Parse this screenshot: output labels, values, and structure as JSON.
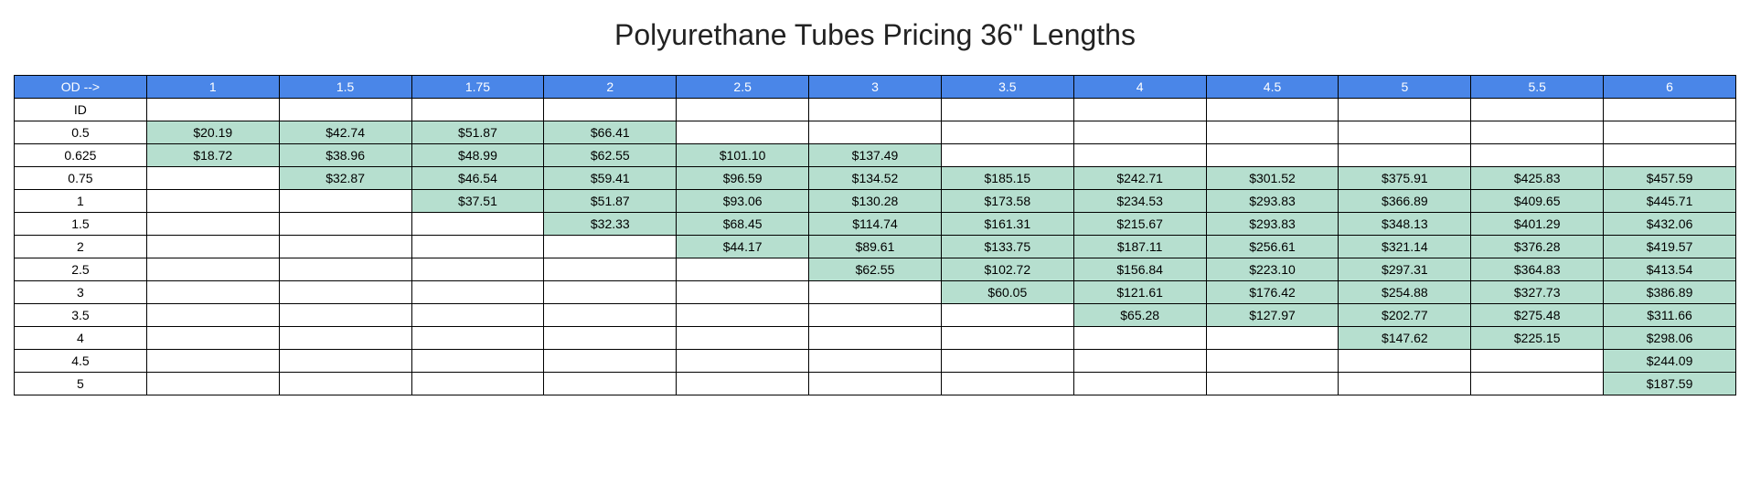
{
  "title": "Polyurethane Tubes Pricing 36\" Lengths",
  "header_bg": "#4a86e8",
  "header_fg": "#ffffff",
  "cell_fill_bg": "#b6dfcf",
  "border_color": "#000000",
  "corner_label": "OD -->",
  "id_label": "ID",
  "od_values": [
    "1",
    "1.5",
    "1.75",
    "2",
    "2.5",
    "3",
    "3.5",
    "4",
    "4.5",
    "5",
    "5.5",
    "6"
  ],
  "id_values": [
    "0.5",
    "0.625",
    "0.75",
    "1",
    "1.5",
    "2",
    "2.5",
    "3",
    "3.5",
    "4",
    "4.5",
    "5"
  ],
  "prices": [
    [
      "$20.19",
      "$42.74",
      "$51.87",
      "$66.41",
      "",
      "",
      "",
      "",
      "",
      "",
      "",
      ""
    ],
    [
      "$18.72",
      "$38.96",
      "$48.99",
      "$62.55",
      "$101.10",
      "$137.49",
      "",
      "",
      "",
      "",
      "",
      ""
    ],
    [
      "",
      "$32.87",
      "$46.54",
      "$59.41",
      "$96.59",
      "$134.52",
      "$185.15",
      "$242.71",
      "$301.52",
      "$375.91",
      "$425.83",
      "$457.59"
    ],
    [
      "",
      "",
      "$37.51",
      "$51.87",
      "$93.06",
      "$130.28",
      "$173.58",
      "$234.53",
      "$293.83",
      "$366.89",
      "$409.65",
      "$445.71"
    ],
    [
      "",
      "",
      "",
      "$32.33",
      "$68.45",
      "$114.74",
      "$161.31",
      "$215.67",
      "$293.83",
      "$348.13",
      "$401.29",
      "$432.06"
    ],
    [
      "",
      "",
      "",
      "",
      "$44.17",
      "$89.61",
      "$133.75",
      "$187.11",
      "$256.61",
      "$321.14",
      "$376.28",
      "$419.57"
    ],
    [
      "",
      "",
      "",
      "",
      "",
      "$62.55",
      "$102.72",
      "$156.84",
      "$223.10",
      "$297.31",
      "$364.83",
      "$413.54"
    ],
    [
      "",
      "",
      "",
      "",
      "",
      "",
      "$60.05",
      "$121.61",
      "$176.42",
      "$254.88",
      "$327.73",
      "$386.89"
    ],
    [
      "",
      "",
      "",
      "",
      "",
      "",
      "",
      "$65.28",
      "$127.97",
      "$202.77",
      "$275.48",
      "$311.66"
    ],
    [
      "",
      "",
      "",
      "",
      "",
      "",
      "",
      "",
      "",
      "$147.62",
      "$225.15",
      "$298.06"
    ],
    [
      "",
      "",
      "",
      "",
      "",
      "",
      "",
      "",
      "",
      "",
      "",
      "$244.09"
    ],
    [
      "",
      "",
      "",
      "",
      "",
      "",
      "",
      "",
      "",
      "",
      "",
      "$187.59"
    ]
  ]
}
